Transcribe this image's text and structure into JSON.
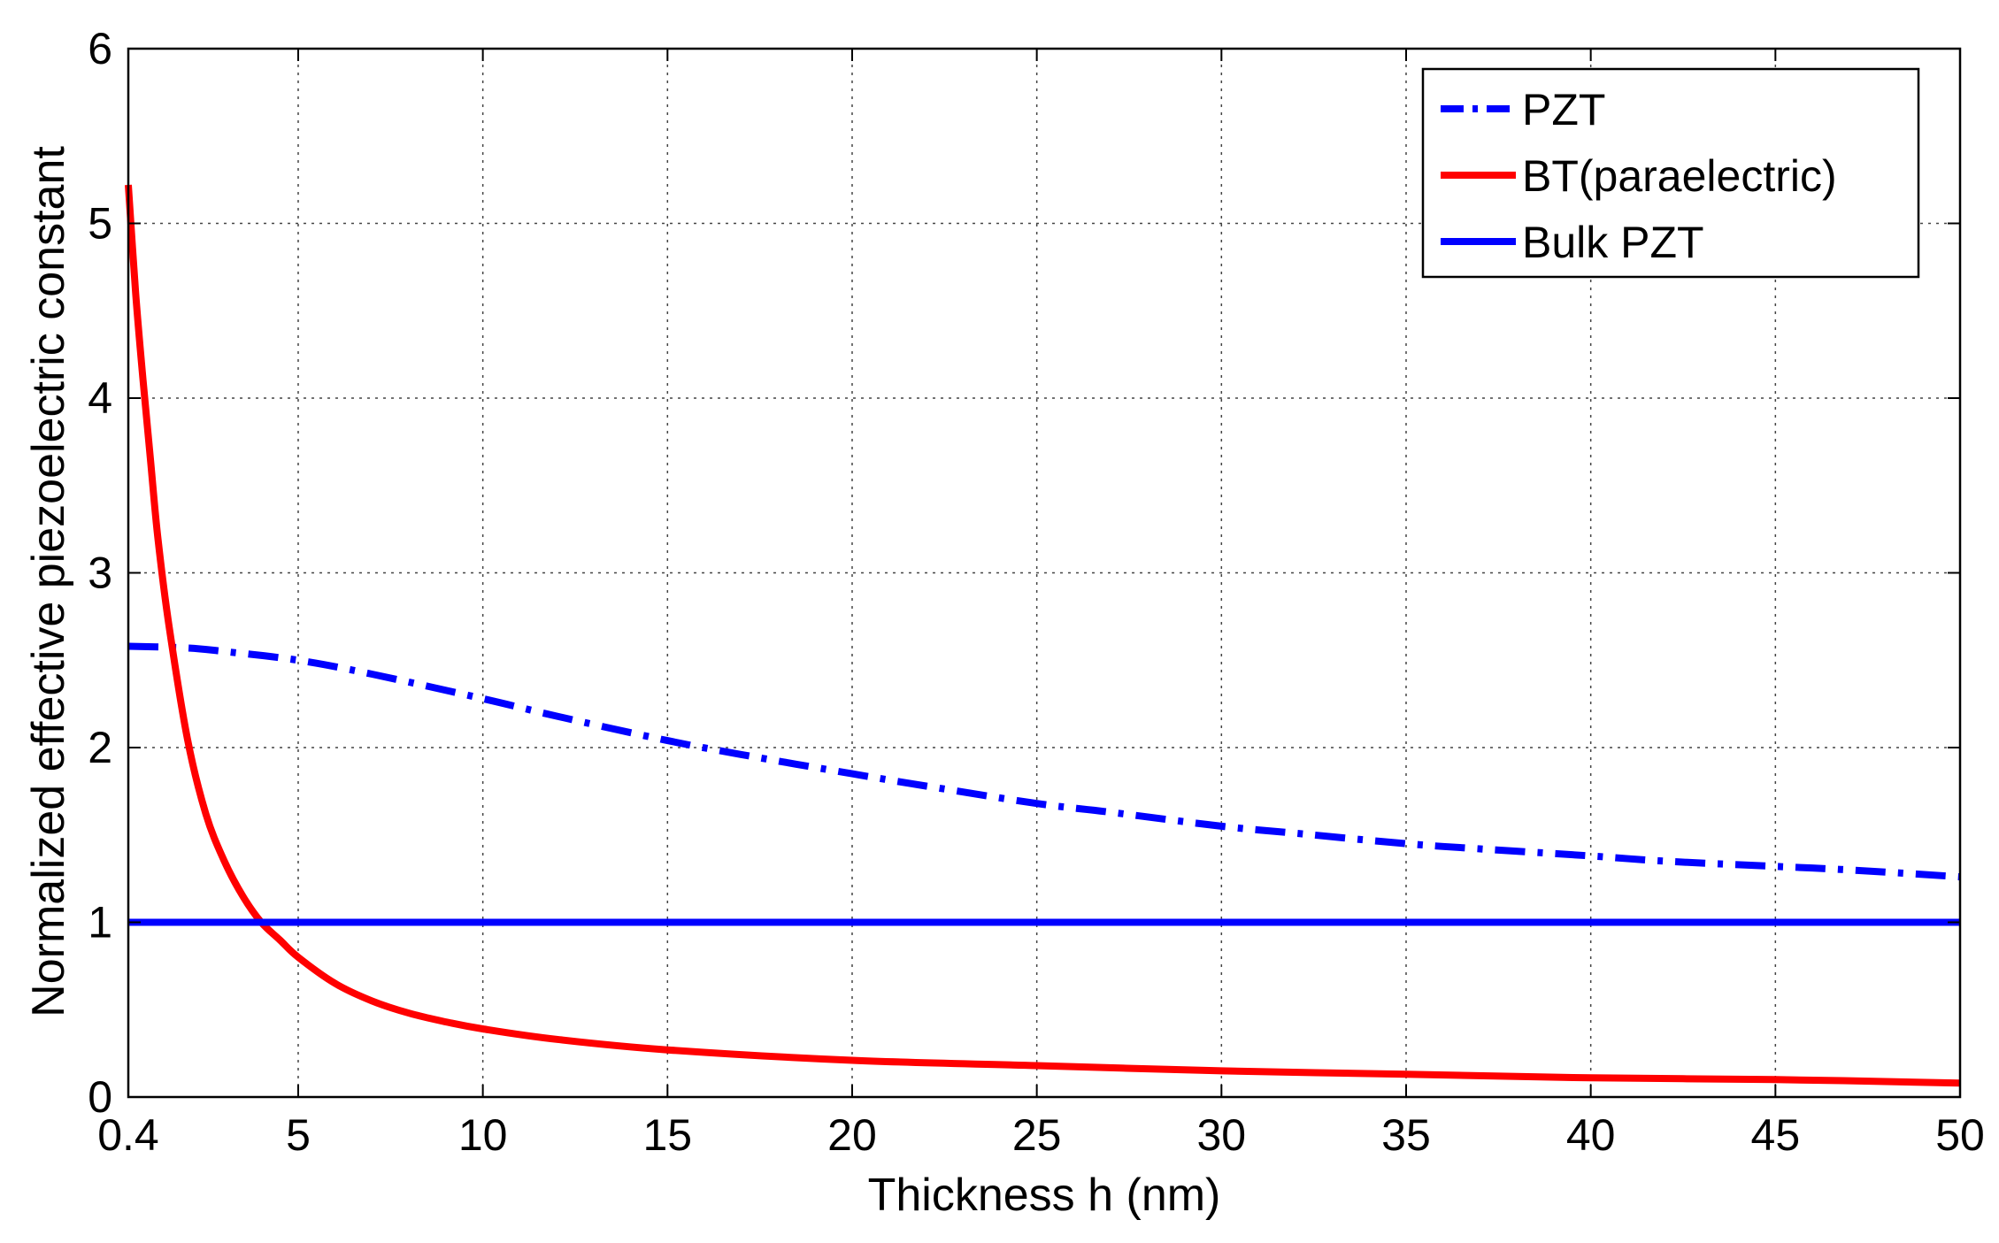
{
  "chart_data": {
    "type": "line",
    "title": "",
    "xlabel": "Thickness h (nm)",
    "ylabel": "Normalized effective piezoelectric constant",
    "xlim": [
      0.4,
      50
    ],
    "ylim": [
      0,
      6
    ],
    "x_ticks": [
      0.4,
      5,
      10,
      15,
      20,
      25,
      30,
      35,
      40,
      45,
      50
    ],
    "x_tick_labels": [
      "0.4",
      "5",
      "10",
      "15",
      "20",
      "25",
      "30",
      "35",
      "40",
      "45",
      "50"
    ],
    "y_ticks": [
      0,
      1,
      2,
      3,
      4,
      5,
      6
    ],
    "y_tick_labels": [
      "0",
      "1",
      "2",
      "3",
      "4",
      "5",
      "6"
    ],
    "grid": true,
    "legend_position": "top-right",
    "series": [
      {
        "name": "PZT",
        "color": "#0000ff",
        "style": "dash-dot",
        "x": [
          0.4,
          2,
          3,
          5,
          7,
          10,
          12,
          15,
          17,
          20,
          22,
          25,
          27,
          30,
          32,
          35,
          37,
          40,
          42,
          45,
          47,
          50
        ],
        "y": [
          2.58,
          2.57,
          2.55,
          2.5,
          2.42,
          2.28,
          2.18,
          2.04,
          1.96,
          1.85,
          1.78,
          1.68,
          1.63,
          1.55,
          1.51,
          1.45,
          1.42,
          1.38,
          1.35,
          1.32,
          1.3,
          1.26
        ]
      },
      {
        "name": "BT(paraelectric)",
        "color": "#ff0000",
        "style": "solid",
        "x": [
          0.4,
          0.6,
          0.8,
          1,
          1.2,
          1.5,
          2,
          2.5,
          3,
          3.5,
          4,
          4.5,
          5,
          6,
          7,
          8,
          9,
          10,
          12,
          15,
          20,
          25,
          30,
          35,
          40,
          45,
          50
        ],
        "y": [
          5.22,
          4.6,
          4.1,
          3.65,
          3.2,
          2.7,
          2.05,
          1.62,
          1.35,
          1.15,
          1.0,
          0.9,
          0.8,
          0.65,
          0.55,
          0.48,
          0.43,
          0.39,
          0.33,
          0.27,
          0.21,
          0.18,
          0.15,
          0.13,
          0.11,
          0.1,
          0.08
        ]
      },
      {
        "name": "Bulk PZT",
        "color": "#0000ff",
        "style": "solid",
        "x": [
          0.4,
          50
        ],
        "y": [
          1.0,
          1.0
        ]
      }
    ]
  }
}
